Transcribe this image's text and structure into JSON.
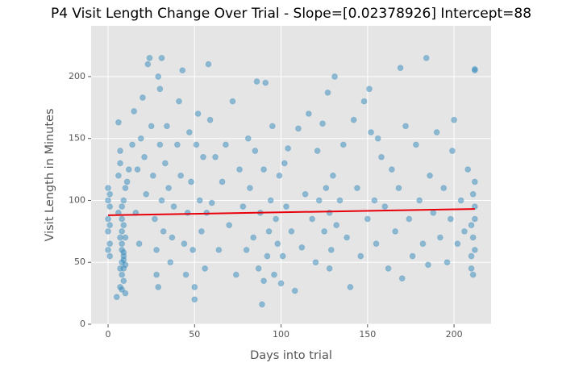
{
  "chart_data": {
    "type": "scatter",
    "title": "P4 Visit Length Change Over Trial - Slope=[0.02378926] Intercept=88",
    "xlabel": "Days into trial",
    "ylabel": "Visit Length in Minutes",
    "color": "#348abd",
    "grid": true,
    "xlim": [
      -9.8,
      221.4
    ],
    "ylim": [
      0,
      241
    ],
    "xticks": [
      0,
      50,
      100,
      150,
      200
    ],
    "yticks": [
      0,
      50,
      100,
      150,
      200
    ],
    "x": [
      0,
      0,
      0,
      0,
      0,
      1,
      1,
      1,
      1,
      1,
      5,
      6,
      6,
      7,
      7,
      7,
      8,
      8,
      8,
      8,
      8,
      8,
      9,
      9,
      9,
      9,
      9,
      10,
      10,
      10,
      6,
      7,
      8,
      9,
      10,
      11,
      12,
      7,
      8,
      9,
      14,
      15,
      16,
      17,
      18,
      19,
      20,
      21,
      22,
      23,
      24,
      25,
      26,
      27,
      28,
      29,
      30,
      30,
      31,
      32,
      28,
      29,
      31,
      33,
      34,
      35,
      36,
      37,
      38,
      40,
      41,
      42,
      43,
      44,
      45,
      46,
      47,
      48,
      49,
      50,
      50,
      51,
      52,
      53,
      54,
      55,
      56,
      57,
      58,
      59,
      60,
      62,
      64,
      66,
      68,
      70,
      72,
      74,
      76,
      78,
      80,
      81,
      82,
      84,
      85,
      86,
      87,
      88,
      89,
      90,
      90,
      91,
      92,
      93,
      94,
      95,
      96,
      97,
      98,
      99,
      100,
      101,
      102,
      103,
      104,
      106,
      108,
      110,
      112,
      114,
      116,
      118,
      120,
      121,
      122,
      124,
      125,
      126,
      127,
      128,
      128,
      129,
      130,
      131,
      132,
      134,
      136,
      138,
      140,
      142,
      144,
      146,
      148,
      150,
      151,
      152,
      154,
      155,
      156,
      158,
      160,
      162,
      164,
      166,
      168,
      169,
      170,
      172,
      174,
      176,
      178,
      180,
      182,
      184,
      185,
      186,
      188,
      190,
      192,
      194,
      196,
      198,
      199,
      200,
      202,
      204,
      206,
      208,
      210,
      212,
      212,
      212,
      212,
      212,
      211,
      211,
      211,
      210,
      210,
      212
    ],
    "values": [
      110,
      100,
      85,
      75,
      60,
      55,
      95,
      65,
      80,
      105,
      22,
      120,
      90,
      45,
      70,
      30,
      60,
      50,
      40,
      75,
      85,
      65,
      55,
      35,
      100,
      80,
      45,
      25,
      70,
      110,
      163,
      130,
      95,
      58,
      48,
      115,
      125,
      140,
      28,
      52,
      145,
      172,
      90,
      125,
      65,
      150,
      183,
      135,
      105,
      210,
      215,
      160,
      120,
      85,
      60,
      200,
      190,
      145,
      100,
      75,
      40,
      30,
      215,
      130,
      160,
      110,
      50,
      70,
      95,
      145,
      180,
      120,
      205,
      65,
      40,
      90,
      155,
      115,
      60,
      30,
      20,
      145,
      170,
      100,
      75,
      135,
      45,
      90,
      210,
      165,
      98,
      135,
      60,
      115,
      145,
      80,
      180,
      40,
      125,
      95,
      60,
      150,
      110,
      70,
      140,
      196,
      45,
      90,
      16,
      35,
      125,
      195,
      55,
      75,
      100,
      160,
      40,
      85,
      65,
      120,
      33,
      55,
      130,
      95,
      142,
      75,
      27,
      158,
      62,
      105,
      170,
      85,
      50,
      140,
      100,
      162,
      75,
      110,
      187,
      45,
      90,
      60,
      120,
      200,
      80,
      100,
      145,
      70,
      30,
      165,
      110,
      55,
      180,
      85,
      190,
      155,
      100,
      65,
      150,
      135,
      95,
      45,
      125,
      75,
      110,
      207,
      37,
      160,
      85,
      55,
      145,
      100,
      65,
      215,
      48,
      120,
      90,
      155,
      70,
      110,
      50,
      85,
      140,
      165,
      65,
      100,
      75,
      125,
      45,
      205,
      115,
      85,
      60,
      95,
      40,
      70,
      105,
      55,
      80,
      206
    ],
    "fit": {
      "x": [
        0,
        212
      ],
      "values": [
        88,
        93.04
      ],
      "color": "#e8000b"
    }
  }
}
